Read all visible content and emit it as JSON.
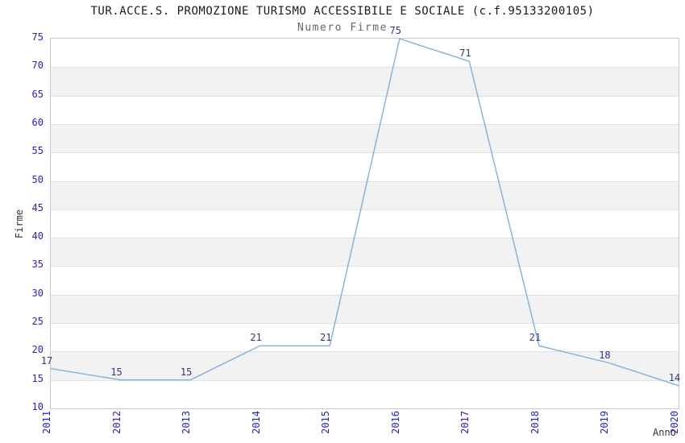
{
  "title": "TUR.ACCE.S. PROMOZIONE TURISMO ACCESSIBILE E SOCIALE (c.f.95133200105)",
  "subtitle": "Numero Firme",
  "chart_data": {
    "type": "line",
    "title": "TUR.ACCE.S. PROMOZIONE TURISMO ACCESSIBILE E SOCIALE (c.f.95133200105)",
    "subtitle": "Numero Firme",
    "xlabel": "Anno",
    "ylabel": "Firme",
    "categories": [
      "2011",
      "2012",
      "2013",
      "2014",
      "2015",
      "2016",
      "2017",
      "2018",
      "2019",
      "2020"
    ],
    "values": [
      17,
      15,
      15,
      21,
      21,
      75,
      71,
      21,
      18,
      14
    ],
    "ylim": [
      10,
      75
    ],
    "ytick_step": 5,
    "grid": true,
    "banded_background": true,
    "legend_position": "none",
    "data_labels_visible": true,
    "colors": {
      "line": "#7fb0e0",
      "tick_labels": "#2323cc",
      "data_labels": "#333382",
      "band": "#f2f2f2",
      "gridline": "#e0e0e0",
      "plot_border": "#c9c9c9",
      "title": "#1a1a1a",
      "subtitle": "#666666",
      "axis_titles": "#333333",
      "background": "#ffffff"
    }
  }
}
